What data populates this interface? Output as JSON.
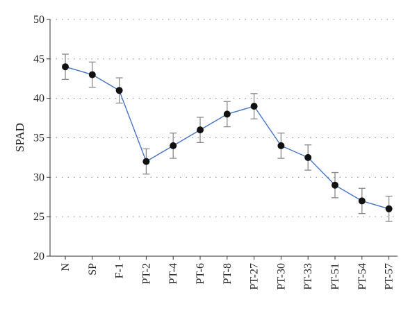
{
  "chart_data": {
    "type": "line",
    "ylabel": "SPAD",
    "xlabel": "",
    "ylim": [
      20,
      50
    ],
    "yticks": [
      20,
      25,
      30,
      35,
      40,
      45,
      50
    ],
    "grid": "horizontal-dotted",
    "categories": [
      "N",
      "SP",
      "F-1",
      "PT-2",
      "PT-4",
      "PT-6",
      "PT-8",
      "PT-27",
      "PT-30",
      "PT-33",
      "PT-51",
      "PT-54",
      "PT-57"
    ],
    "series": [
      {
        "values": [
          44,
          43,
          41,
          32,
          34,
          36,
          38,
          39,
          34,
          32.5,
          29,
          27,
          26
        ],
        "error": [
          1.6,
          1.6,
          1.6,
          1.6,
          1.6,
          1.6,
          1.6,
          1.6,
          1.6,
          1.6,
          1.6,
          1.6,
          1.6
        ],
        "color": "#4472c4",
        "marker_color": "#111111"
      }
    ]
  }
}
